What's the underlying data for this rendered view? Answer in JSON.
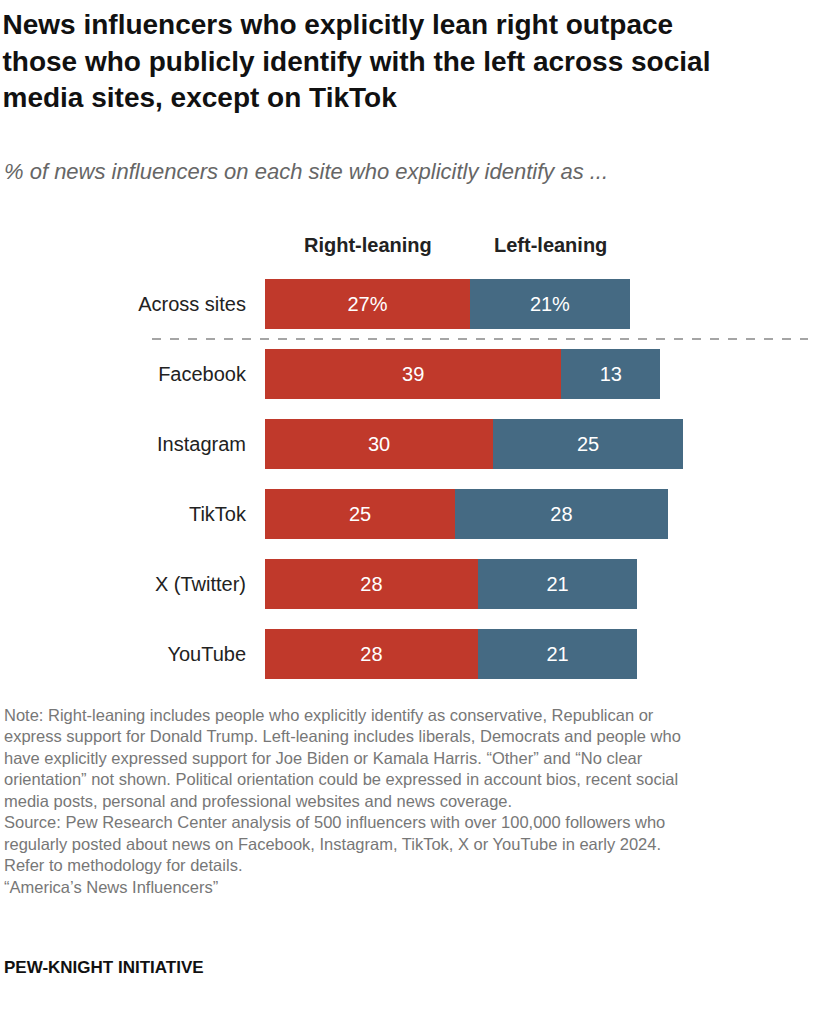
{
  "chart_data": {
    "type": "bar",
    "orientation": "horizontal",
    "stacked": true,
    "data_labels": true,
    "tick_labels": "y",
    "grid": false,
    "title": "News influencers who explicitly lean right outpace\nthose who publicly identify with the left across social\nmedia sites, except on TikTok",
    "subtitle": "% of news influencers on each site who explicitly identify as ...",
    "categories": [
      "Across sites",
      "Facebook",
      "Instagram",
      "TikTok",
      "X (Twitter)",
      "YouTube"
    ],
    "series": [
      {
        "name": "Right-leaning",
        "color": "#c0392b",
        "values": [
          27,
          39,
          30,
          25,
          28,
          28
        ],
        "value_labels": [
          "27%",
          "39",
          "30",
          "25",
          "28",
          "28"
        ]
      },
      {
        "name": "Left-leaning",
        "color": "#456a83",
        "values": [
          21,
          13,
          25,
          28,
          21,
          21
        ],
        "value_labels": [
          "21%",
          "13",
          "25",
          "28",
          "21",
          "21"
        ]
      }
    ],
    "xlim": [
      0,
      55
    ],
    "note": "Note: Right-leaning includes people who explicitly identify as conservative, Republican or\nexpress support for Donald Trump. Left-leaning includes liberals, Democrats and people who\nhave explicitly expressed support for Joe Biden or Kamala Harris. “Other” and “No clear\norientation” not shown. Political orientation could be expressed in account bios, recent social\nmedia posts, personal and professional websites and news coverage.",
    "source": "Source: Pew Research Center analysis of 500 influencers with over 100,000 followers who\nregularly posted about news on Facebook, Instagram, TikTok, X or YouTube in early 2024.\nRefer to methodology for details.",
    "report": "“America’s News Influencers”",
    "credit": "PEW-KNIGHT INITIATIVE"
  }
}
